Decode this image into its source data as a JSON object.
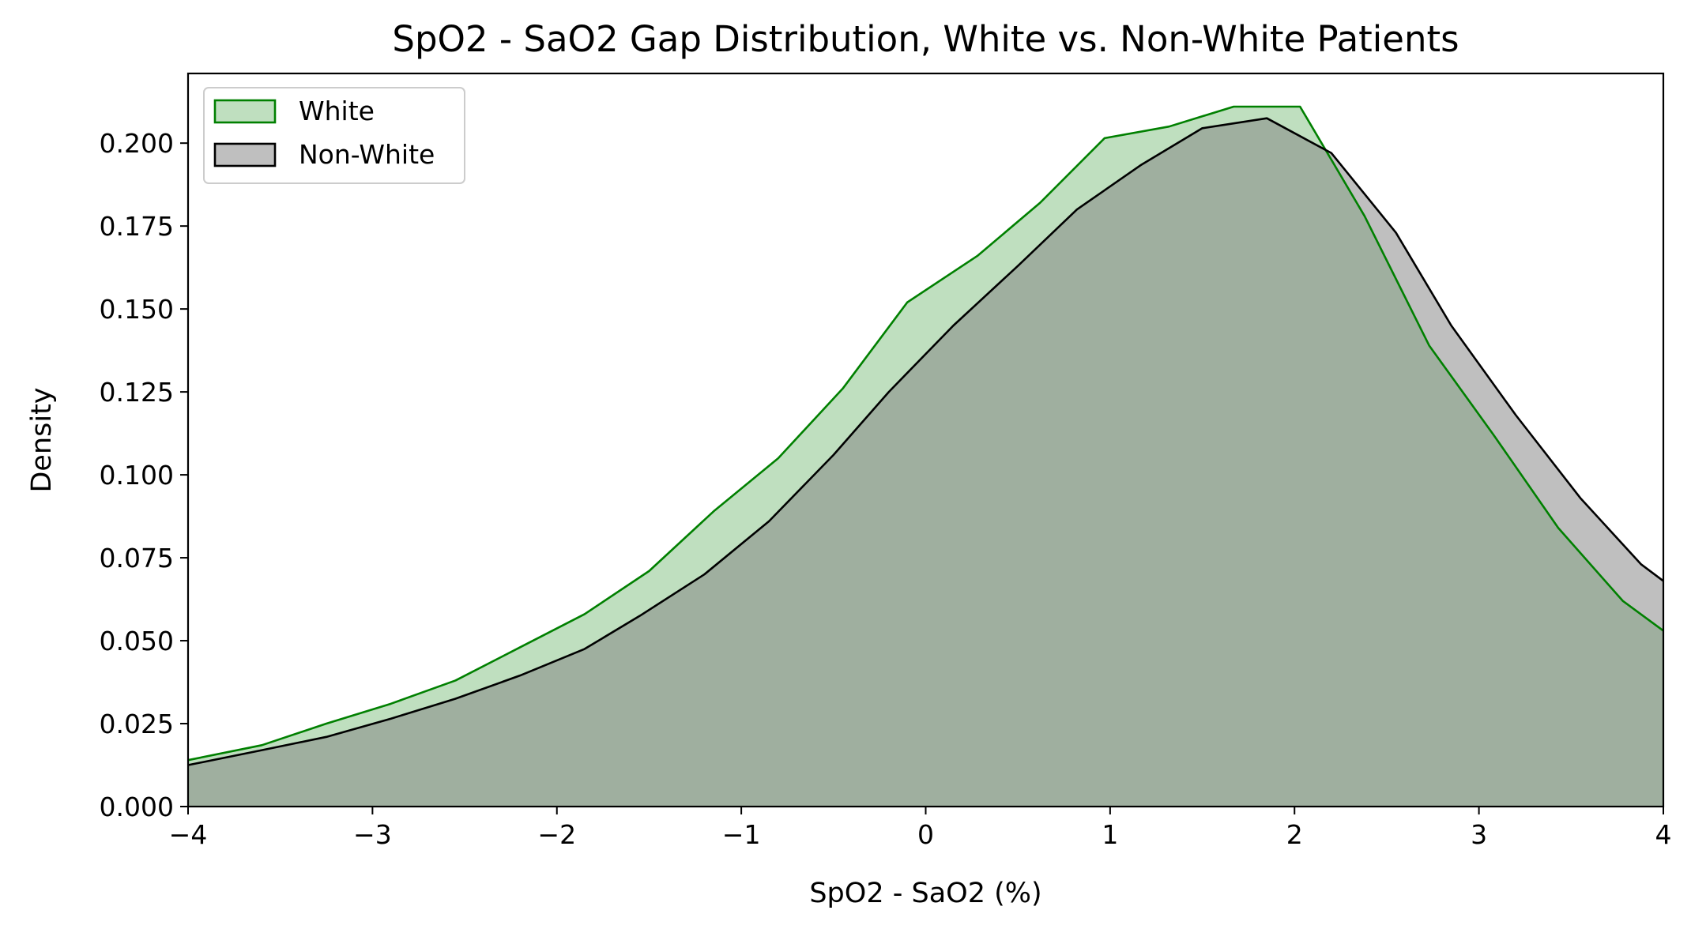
{
  "chart_data": {
    "type": "area",
    "title": "SpO2 - SaO2 Gap Distribution, White vs. Non-White Patients",
    "xlabel": "SpO2 - SaO2 (%)",
    "ylabel": "Density",
    "xlim": [
      -4,
      4
    ],
    "ylim": [
      0,
      0.221
    ],
    "xticks": [
      -4,
      -3,
      -2,
      -1,
      0,
      1,
      2,
      3,
      4
    ],
    "xtick_labels": [
      "−4",
      "−3",
      "−2",
      "−1",
      "0",
      "1",
      "2",
      "3",
      "4"
    ],
    "yticks": [
      0,
      0.025,
      0.05,
      0.075,
      0.1,
      0.125,
      0.15,
      0.175,
      0.2
    ],
    "ytick_labels": [
      "0.000",
      "0.025",
      "0.050",
      "0.075",
      "0.100",
      "0.125",
      "0.150",
      "0.175",
      "0.200"
    ],
    "grid": false,
    "legend_position": "top-left",
    "series": [
      {
        "name": "White",
        "line_color": "#008000",
        "fill_color": "#008000",
        "fill_opacity": 0.25,
        "x": [
          -4.0,
          -3.6,
          -3.25,
          -2.9,
          -2.55,
          -2.2,
          -1.85,
          -1.5,
          -1.15,
          -0.8,
          -0.45,
          -0.1,
          0.28,
          0.62,
          0.97,
          1.32,
          1.67,
          2.03,
          2.38,
          2.73,
          3.08,
          3.43,
          3.78,
          4.0
        ],
        "y": [
          0.014,
          0.0185,
          0.025,
          0.031,
          0.038,
          0.048,
          0.058,
          0.071,
          0.089,
          0.105,
          0.126,
          0.152,
          0.166,
          0.182,
          0.2015,
          0.205,
          0.211,
          0.211,
          0.178,
          0.139,
          0.112,
          0.084,
          0.062,
          0.053
        ]
      },
      {
        "name": "Non-White",
        "line_color": "#000000",
        "fill_color": "#808080",
        "fill_opacity": 0.5,
        "x": [
          -4.0,
          -3.6,
          -3.25,
          -2.9,
          -2.55,
          -2.2,
          -1.85,
          -1.55,
          -1.2,
          -0.85,
          -0.5,
          -0.2,
          0.15,
          0.5,
          0.82,
          1.17,
          1.5,
          1.85,
          2.2,
          2.55,
          2.85,
          3.2,
          3.55,
          3.88,
          4.0
        ],
        "y": [
          0.0125,
          0.017,
          0.021,
          0.0265,
          0.0325,
          0.0395,
          0.0475,
          0.0575,
          0.07,
          0.086,
          0.106,
          0.125,
          0.145,
          0.163,
          0.18,
          0.1935,
          0.2045,
          0.2075,
          0.197,
          0.173,
          0.145,
          0.118,
          0.093,
          0.073,
          0.068
        ]
      }
    ]
  }
}
